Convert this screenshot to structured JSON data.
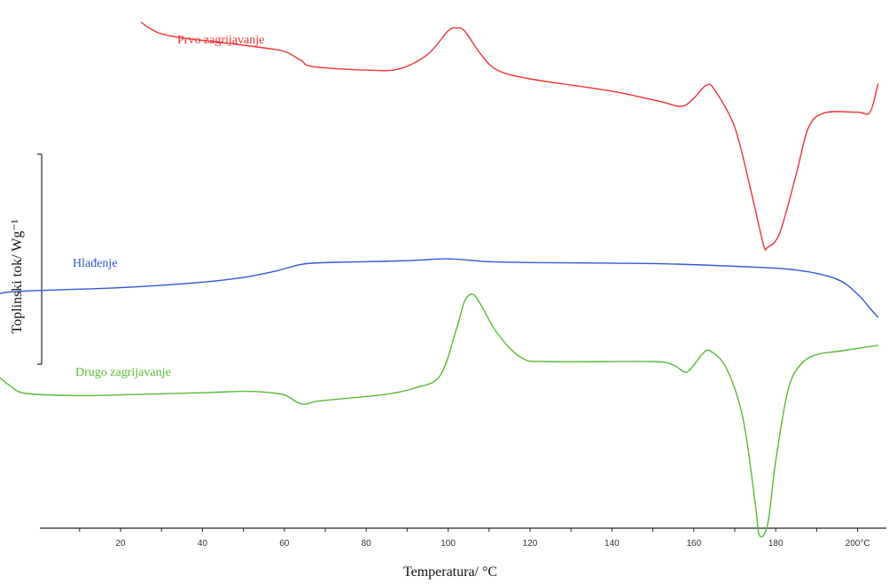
{
  "chart_data": {
    "type": "line",
    "title": "",
    "xlabel": "Temperatura/ °C",
    "ylabel": "Toplinski tok/ Wg⁻¹",
    "xlim": [
      -10,
      208
    ],
    "x_ticks": [
      {
        "value": 20,
        "label": "20"
      },
      {
        "value": 40,
        "label": "40"
      },
      {
        "value": 60,
        "label": "60"
      },
      {
        "value": 80,
        "label": "80"
      },
      {
        "value": 100,
        "label": "100"
      },
      {
        "value": 120,
        "label": "120"
      },
      {
        "value": 140,
        "label": "140"
      },
      {
        "value": 160,
        "label": "160"
      },
      {
        "value": 180,
        "label": "180"
      },
      {
        "value": 200,
        "label": "200°C"
      }
    ],
    "y_ticks_visible": false,
    "grid": false,
    "series": [
      {
        "name": "Prvo zagrijavanje",
        "color": "#ee3333",
        "x": [
          25,
          27,
          30,
          35,
          45,
          55,
          60,
          64,
          67,
          80,
          88,
          95,
          100,
          102,
          104,
          108,
          112,
          120,
          140,
          152,
          157,
          160,
          163,
          165,
          170,
          174,
          177,
          178,
          181,
          185,
          188,
          192,
          200,
          203,
          205
        ],
        "y": [
          10.0,
          9.0,
          8.0,
          7.3,
          6.5,
          5.6,
          5.0,
          3.5,
          2.4,
          1.8,
          2.0,
          4.5,
          8.5,
          9.0,
          8.5,
          4.5,
          1.8,
          0.3,
          -1.8,
          -3.6,
          -4.4,
          -3.0,
          -0.8,
          -1.5,
          -8.0,
          -19.0,
          -28.0,
          -28.5,
          -26.0,
          -16.0,
          -8.0,
          -5.5,
          -5.4,
          -5.4,
          -0.5
        ]
      },
      {
        "name": "Hlađenje",
        "color": "#3355dd",
        "x": [
          -10,
          -8,
          -5,
          0,
          20,
          40,
          50,
          58,
          64,
          70,
          80,
          90,
          100,
          110,
          120,
          150,
          170,
          185,
          195,
          200,
          203,
          205
        ],
        "y": [
          0.0,
          0.2,
          0.3,
          0.4,
          0.7,
          1.3,
          1.8,
          2.5,
          3.2,
          3.4,
          3.5,
          3.6,
          3.8,
          3.5,
          3.4,
          3.3,
          3.0,
          2.6,
          1.6,
          0.0,
          -1.5,
          -2.5
        ]
      },
      {
        "name": "Drugo zagrijavanje",
        "color": "#55bb33",
        "x": [
          -10,
          -7,
          -3,
          10,
          20,
          40,
          50,
          55,
          60,
          63,
          65,
          68,
          75,
          85,
          92,
          98,
          102,
          104,
          106,
          108,
          112,
          118,
          125,
          150,
          155,
          158,
          160,
          162,
          164,
          168,
          172,
          175,
          176,
          178,
          180,
          183,
          186,
          190,
          196,
          205
        ],
        "y": [
          2.0,
          0.6,
          -0.5,
          -0.8,
          -0.7,
          -0.4,
          -0.2,
          -0.3,
          -0.7,
          -1.7,
          -2.0,
          -1.6,
          -1.2,
          -0.6,
          0.3,
          2.0,
          8.5,
          12.5,
          13.5,
          12.0,
          8.0,
          4.5,
          4.0,
          4.0,
          3.5,
          2.5,
          3.5,
          5.0,
          5.5,
          3.0,
          -4.0,
          -16.0,
          -20.5,
          -19.0,
          -10.0,
          0.0,
          3.5,
          5.0,
          5.5,
          6.3
        ]
      }
    ]
  }
}
